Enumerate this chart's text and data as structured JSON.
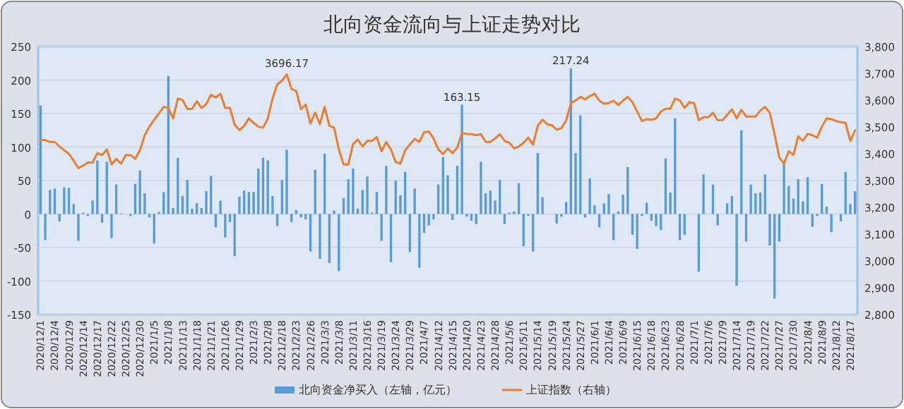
{
  "chart_data": {
    "type": "bar",
    "title": "北向资金流向与上证走势对比",
    "categories": [
      "2020/12/1",
      null,
      null,
      "2020/12/4",
      null,
      null,
      "2020/12/9",
      null,
      null,
      "2020/12/14",
      null,
      null,
      "2020/12/17",
      null,
      null,
      "2020/12/22",
      null,
      null,
      "2020/12/25",
      null,
      null,
      "2020/12/30",
      null,
      null,
      "2021/1/5",
      null,
      null,
      "2021/1/8",
      null,
      null,
      "2021/1/13",
      null,
      null,
      "2021/1/18",
      null,
      null,
      "2021/1/21",
      null,
      null,
      "2021/1/26",
      null,
      null,
      "2021/1/29",
      null,
      null,
      "2021/2/3",
      null,
      null,
      "2021/2/8",
      null,
      null,
      "2021/2/18",
      null,
      null,
      "2021/2/23",
      null,
      null,
      "2021/2/26",
      null,
      null,
      "2021/3/3",
      null,
      null,
      "2021/3/8",
      null,
      null,
      "2021/3/11",
      null,
      null,
      "2021/3/16",
      null,
      null,
      "2021/3/19",
      null,
      null,
      "2021/3/24",
      null,
      null,
      "2021/3/29",
      null,
      null,
      "2021/4/7",
      null,
      null,
      "2021/4/12",
      null,
      null,
      "2021/4/15",
      null,
      null,
      "2021/4/20",
      null,
      null,
      "2021/4/23",
      null,
      null,
      "2021/4/28",
      null,
      null,
      "2021/5/6",
      null,
      null,
      "2021/5/11",
      null,
      null,
      "2021/5/14",
      null,
      null,
      "2021/5/19",
      null,
      null,
      "2021/5/24",
      null,
      null,
      "2021/5/27",
      null,
      null,
      "2021/6/1",
      null,
      null,
      "2021/6/4",
      null,
      null,
      "2021/6/9",
      null,
      null,
      "2021/6/15",
      null,
      null,
      "2021/6/18",
      null,
      null,
      "2021/6/23",
      null,
      null,
      "2021/6/28",
      null,
      null,
      "2021/7/1",
      null,
      null,
      "2021/7/6",
      null,
      null,
      "2021/7/9",
      null,
      null,
      "2021/7/14",
      null,
      null,
      "2021/7/19",
      null,
      null,
      "2021/7/22",
      null,
      null,
      "2021/7/27",
      null,
      null,
      "2021/7/30",
      null,
      null,
      "2021/8/4",
      null,
      null,
      "2021/8/9",
      null,
      null,
      "2021/8/12",
      null,
      null,
      "2021/8/17",
      null
    ],
    "ylim": [
      -150,
      250
    ],
    "yticks": [
      -150,
      -100,
      -50,
      0,
      50,
      100,
      150,
      200,
      250
    ],
    "y2lim": [
      2800,
      3800
    ],
    "y2ticks": [
      {
        "value": 2800,
        "label": "2,800"
      },
      {
        "value": 2900,
        "label": "2,900"
      },
      {
        "value": 3000,
        "label": "3,000"
      },
      {
        "value": 3100,
        "label": "3,100"
      },
      {
        "value": 3200,
        "label": "3,200"
      },
      {
        "value": 3300,
        "label": "3,300"
      },
      {
        "value": 3400,
        "label": "3,400"
      },
      {
        "value": 3500,
        "label": "3,500"
      },
      {
        "value": 3600,
        "label": "3,600"
      },
      {
        "value": 3700,
        "label": "3,700"
      },
      {
        "value": 3800,
        "label": "3,800"
      }
    ],
    "grid": "y",
    "legend": "bottom",
    "series": [
      {
        "name": "北向资金净买入（左轴，亿元）",
        "color": "#5b9bd5",
        "values": [
          162,
          -39,
          36,
          38,
          -11,
          40,
          39,
          15,
          -40,
          2,
          -3,
          20,
          80,
          -13,
          78,
          -36,
          44,
          1,
          null,
          -3,
          45,
          65,
          31,
          -5,
          -44,
          3,
          33,
          206,
          9,
          84,
          27,
          51,
          8,
          16,
          9,
          34,
          57,
          -20,
          20,
          -35,
          -12,
          -63,
          26,
          35,
          33,
          33,
          68,
          84,
          80,
          27,
          -18,
          51,
          96,
          -12,
          6,
          -5,
          -8,
          -56,
          66,
          -67,
          90,
          -73,
          5,
          -85,
          24,
          52,
          68,
          8,
          36,
          56,
          2,
          33,
          -40,
          72,
          -72,
          50,
          28,
          63,
          -57,
          38,
          -80,
          -28,
          -17,
          -8,
          44,
          85,
          58,
          -9,
          72,
          163.15,
          -4,
          -10,
          -15,
          78,
          31,
          35,
          20,
          51,
          -15,
          2,
          4,
          46,
          -48,
          -3,
          -56,
          91,
          25,
          null,
          null,
          -14,
          -4,
          18,
          217.24,
          91,
          147,
          -5,
          53,
          13,
          -20,
          16,
          30,
          -39,
          4,
          29,
          70,
          -31,
          -52,
          -3,
          17,
          -10,
          -18,
          -24,
          83,
          32,
          143,
          -39,
          -31,
          null,
          null,
          -86,
          59,
          null,
          44,
          -17,
          null,
          16,
          27,
          -107,
          125,
          -41,
          44,
          31,
          32,
          59,
          -47,
          -126,
          -41,
          76,
          42,
          23,
          52,
          19,
          55,
          -19,
          -3,
          45,
          11,
          -27,
          null,
          -11,
          63,
          15,
          34
        ],
        "value_labels": [
          null,
          null,
          null,
          null,
          null,
          null,
          null,
          null,
          null,
          null,
          null,
          null,
          null,
          null,
          null,
          null,
          null,
          null,
          null,
          null,
          null,
          null,
          null,
          null,
          null,
          null,
          null,
          null,
          null,
          null,
          null,
          null,
          null,
          null,
          null,
          null,
          null,
          null,
          null,
          null,
          null,
          null,
          null,
          null,
          null,
          null,
          null,
          null,
          null,
          null,
          null,
          null,
          null,
          null,
          null,
          null,
          null,
          null,
          null,
          null,
          null,
          null,
          null,
          null,
          null,
          null,
          null,
          null,
          null,
          null,
          null,
          null,
          null,
          null,
          null,
          null,
          null,
          null,
          null,
          null,
          null,
          null,
          null,
          null,
          null,
          null,
          null,
          null,
          null,
          "163.15",
          null,
          null,
          null,
          null,
          null,
          null,
          null,
          null,
          null,
          null,
          null,
          null,
          null,
          null,
          null,
          null,
          null,
          null,
          null,
          null,
          null,
          null,
          "217.24",
          null,
          null,
          null,
          null,
          null,
          null,
          null,
          null,
          null,
          null,
          null,
          null,
          null,
          null,
          null,
          null,
          null,
          null,
          null,
          null,
          null,
          null,
          null,
          null,
          null,
          null,
          null,
          null,
          null,
          null,
          null,
          null,
          null,
          null,
          null,
          null,
          null,
          null,
          null,
          null,
          null,
          null,
          null,
          null,
          null,
          null,
          null,
          null,
          null,
          null,
          null,
          null,
          null,
          null,
          null,
          null,
          null,
          null,
          null,
          null
        ]
      },
      {
        "name": "上证指数（右轴）",
        "type": "line",
        "axis": "y2",
        "color": "#ed7d31",
        "values": [
          3451,
          3451,
          3444,
          3444,
          3427,
          3413,
          3399,
          3374,
          3346,
          3356,
          3367,
          3367,
          3402,
          3395,
          3416,
          3360,
          3381,
          3363,
          3395,
          3395,
          3381,
          3413,
          3469,
          3501,
          3527,
          3550,
          3575,
          3571,
          3532,
          3606,
          3601,
          3567,
          3567,
          3596,
          3571,
          3585,
          3620,
          3610,
          3624,
          3571,
          3571,
          3508,
          3488,
          3504,
          3532,
          3515,
          3501,
          3497,
          3532,
          3606,
          3659,
          3673,
          3696.17,
          3642,
          3634,
          3566,
          3583,
          3513,
          3554,
          3510,
          3575,
          3504,
          3497,
          3416,
          3360,
          3360,
          3436,
          3453,
          3427,
          3448,
          3448,
          3462,
          3409,
          3444,
          3416,
          3369,
          3363,
          3413,
          3434,
          3455,
          3444,
          3480,
          3483,
          3457,
          3416,
          3399,
          3420,
          3402,
          3423,
          3478,
          3474,
          3473,
          3469,
          3473,
          3444,
          3444,
          3457,
          3473,
          3448,
          3441,
          3420,
          3427,
          3441,
          3460,
          3434,
          3504,
          3527,
          3510,
          3506,
          3490,
          3495,
          3524,
          3589,
          3599,
          3612,
          3603,
          3615,
          3624,
          3598,
          3587,
          3589,
          3598,
          3582,
          3598,
          3612,
          3592,
          3557,
          3522,
          3529,
          3527,
          3532,
          3557,
          3568,
          3568,
          3606,
          3599,
          3571,
          3592,
          3589,
          3525,
          3536,
          3536,
          3553,
          3525,
          3525,
          3545,
          3566,
          3532,
          3564,
          3539,
          3539,
          3539,
          3561,
          3575,
          3553,
          3474,
          3386,
          3363,
          3409,
          3395,
          3465,
          3448,
          3474,
          3469,
          3460,
          3501,
          3532,
          3529,
          3522,
          3518,
          3515,
          3448,
          3487
        ],
        "value_labels": [
          null,
          null,
          null,
          null,
          null,
          null,
          null,
          null,
          null,
          null,
          null,
          null,
          null,
          null,
          null,
          null,
          null,
          null,
          null,
          null,
          null,
          null,
          null,
          null,
          null,
          null,
          null,
          null,
          null,
          null,
          null,
          null,
          null,
          null,
          null,
          null,
          null,
          null,
          null,
          null,
          null,
          null,
          null,
          null,
          null,
          null,
          null,
          null,
          null,
          null,
          null,
          null,
          "3696.17",
          null,
          null,
          null,
          null,
          null,
          null,
          null,
          null,
          null,
          null,
          null,
          null,
          null,
          null,
          null,
          null,
          null,
          null,
          null,
          null,
          null,
          null,
          null,
          null,
          null,
          null,
          null,
          null,
          null,
          null,
          null,
          null,
          null,
          null,
          null,
          null,
          null,
          null,
          null,
          null,
          null,
          null,
          null,
          null,
          null,
          null,
          null,
          null,
          null,
          null,
          null,
          null,
          null,
          null,
          null,
          null,
          null,
          null,
          null,
          null,
          null,
          null,
          null,
          null,
          null,
          null,
          null,
          null,
          null,
          null,
          null,
          null,
          null,
          null,
          null,
          null,
          null,
          null,
          null,
          null,
          null,
          null,
          null,
          null,
          null,
          null,
          null,
          null,
          null,
          null,
          null,
          null,
          null,
          null,
          null,
          null,
          null,
          null,
          null,
          null,
          null,
          null,
          null,
          null,
          null,
          null,
          null,
          null,
          null,
          null,
          null,
          null,
          null,
          null,
          null,
          null,
          null,
          null,
          null,
          null
        ]
      }
    ]
  }
}
